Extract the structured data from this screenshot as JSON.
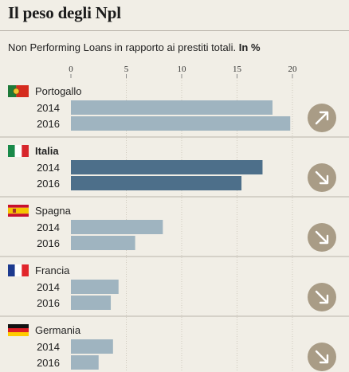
{
  "header": {
    "title": "Il peso degli Npl",
    "subtitle_text": "Non Performing Loans in rapporto ai prestiti totali.",
    "subtitle_unit": "In %"
  },
  "colors": {
    "bar_default": "#9fb4c0",
    "bar_highlight": "#4d6f8a",
    "trend_circle": "#a99c86",
    "background": "#f1eee6"
  },
  "chart_data": {
    "type": "bar",
    "orientation": "horizontal",
    "xlim": [
      0,
      20
    ],
    "ticks": [
      "0",
      "5",
      "10",
      "15",
      "20"
    ],
    "highlight": "Italia",
    "groups": [
      {
        "country": "Portogallo",
        "flag": "portugal-flag",
        "trend": "up",
        "bars": [
          {
            "year": "2014",
            "value": 18.2
          },
          {
            "year": "2016",
            "value": 19.8
          }
        ]
      },
      {
        "country": "Italia",
        "flag": "italy-flag",
        "trend": "down",
        "bars": [
          {
            "year": "2014",
            "value": 17.3
          },
          {
            "year": "2016",
            "value": 15.4
          }
        ]
      },
      {
        "country": "Spagna",
        "flag": "spain-flag",
        "trend": "down",
        "bars": [
          {
            "year": "2014",
            "value": 8.3
          },
          {
            "year": "2016",
            "value": 5.8
          }
        ]
      },
      {
        "country": "Francia",
        "flag": "france-flag",
        "trend": "down",
        "bars": [
          {
            "year": "2014",
            "value": 4.3
          },
          {
            "year": "2016",
            "value": 3.6
          }
        ]
      },
      {
        "country": "Germania",
        "flag": "germany-flag",
        "trend": "down",
        "bars": [
          {
            "year": "2014",
            "value": 3.8
          },
          {
            "year": "2016",
            "value": 2.5
          }
        ]
      }
    ]
  }
}
